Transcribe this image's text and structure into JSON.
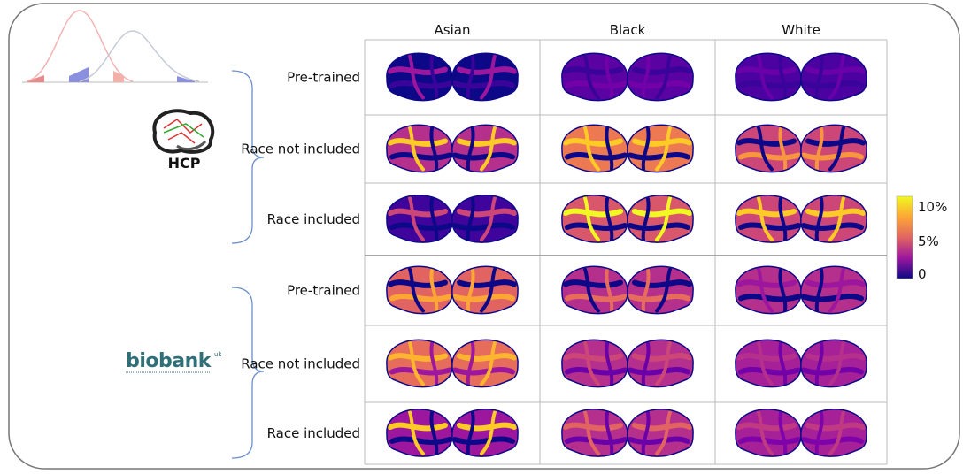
{
  "columns": [
    "Asian",
    "Black",
    "White"
  ],
  "groups": [
    {
      "logo": "HCP",
      "rows": [
        "Pre-trained",
        "Race not included",
        "Race included"
      ]
    },
    {
      "logo": "biobank",
      "logo_sup": "uk",
      "rows": [
        "Pre-trained",
        "Race not included",
        "Race included"
      ]
    }
  ],
  "colorbar": {
    "ticks": [
      "10%",
      "5%",
      "0"
    ]
  }
}
